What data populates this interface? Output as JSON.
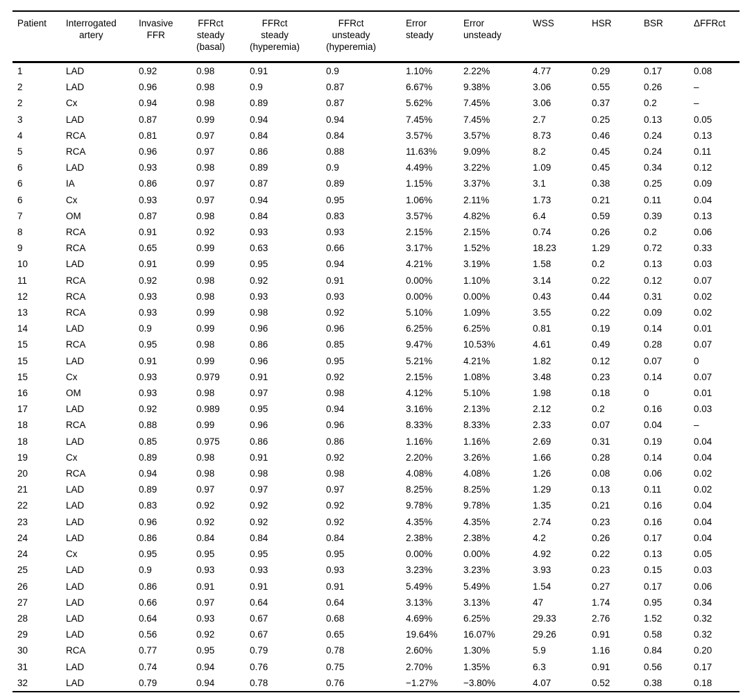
{
  "table": {
    "columns": [
      {
        "key": "patient",
        "label": "Patient"
      },
      {
        "key": "artery",
        "label": "Interrogated\nartery"
      },
      {
        "key": "invasive-ffr",
        "label": "Invasive\nFFR"
      },
      {
        "key": "ffrct-steady-basal",
        "label": "FFRct\nsteady\n(basal)"
      },
      {
        "key": "ffrct-steady-hyperemia",
        "label": "FFRct\nsteady\n(hyperemia)"
      },
      {
        "key": "ffrct-unsteady-hyperemia",
        "label": "FFRct\nunsteady\n(hyperemia)"
      },
      {
        "key": "error-steady",
        "label": "Error\nsteady"
      },
      {
        "key": "error-unsteady",
        "label": "Error\nunsteady"
      },
      {
        "key": "wss",
        "label": "WSS"
      },
      {
        "key": "hsr",
        "label": "HSR"
      },
      {
        "key": "bsr",
        "label": "BSR"
      },
      {
        "key": "delta-ffrct",
        "label": "ΔFFRct"
      }
    ],
    "rows": [
      [
        "1",
        "LAD",
        "0.92",
        "0.98",
        "0.91",
        "0.9",
        "1.10%",
        "2.22%",
        "4.77",
        "0.29",
        "0.17",
        "0.08"
      ],
      [
        "2",
        "LAD",
        "0.96",
        "0.98",
        "0.9",
        "0.87",
        "6.67%",
        "9.38%",
        "3.06",
        "0.55",
        "0.26",
        "–"
      ],
      [
        "2",
        "Cx",
        "0.94",
        "0.98",
        "0.89",
        "0.87",
        "5.62%",
        "7.45%",
        "3.06",
        "0.37",
        "0.2",
        "–"
      ],
      [
        "3",
        "LAD",
        "0.87",
        "0.99",
        "0.94",
        "0.94",
        "7.45%",
        "7.45%",
        "2.7",
        "0.25",
        "0.13",
        "0.05"
      ],
      [
        "4",
        "RCA",
        "0.81",
        "0.97",
        "0.84",
        "0.84",
        "3.57%",
        "3.57%",
        "8.73",
        "0.46",
        "0.24",
        "0.13"
      ],
      [
        "5",
        "RCA",
        "0.96",
        "0.97",
        "0.86",
        "0.88",
        "11.63%",
        "9.09%",
        "8.2",
        "0.45",
        "0.24",
        "0.11"
      ],
      [
        "6",
        "LAD",
        "0.93",
        "0.98",
        "0.89",
        "0.9",
        "4.49%",
        "3.22%",
        "1.09",
        "0.45",
        "0.34",
        "0.12"
      ],
      [
        "6",
        "IA",
        "0.86",
        "0.97",
        "0.87",
        "0.89",
        "1.15%",
        "3.37%",
        "3.1",
        "0.38",
        "0.25",
        "0.09"
      ],
      [
        "6",
        "Cx",
        "0.93",
        "0.97",
        "0.94",
        "0.95",
        "1.06%",
        "2.11%",
        "1.73",
        "0.21",
        "0.11",
        "0.04"
      ],
      [
        "7",
        "OM",
        "0.87",
        "0.98",
        "0.84",
        "0.83",
        "3.57%",
        "4.82%",
        "6.4",
        "0.59",
        "0.39",
        "0.13"
      ],
      [
        "8",
        "RCA",
        "0.91",
        "0.92",
        "0.93",
        "0.93",
        "2.15%",
        "2.15%",
        "0.74",
        "0.26",
        "0.2",
        "0.06"
      ],
      [
        "9",
        "RCA",
        "0.65",
        "0.99",
        "0.63",
        "0.66",
        "3.17%",
        "1.52%",
        "18.23",
        "1.29",
        "0.72",
        "0.33"
      ],
      [
        "10",
        "LAD",
        "0.91",
        "0.99",
        "0.95",
        "0.94",
        "4.21%",
        "3.19%",
        "1.58",
        "0.2",
        "0.13",
        "0.03"
      ],
      [
        "11",
        "RCA",
        "0.92",
        "0.98",
        "0.92",
        "0.91",
        "0.00%",
        "1.10%",
        "3.14",
        "0.22",
        "0.12",
        "0.07"
      ],
      [
        "12",
        "RCA",
        "0.93",
        "0.98",
        "0.93",
        "0.93",
        "0.00%",
        "0.00%",
        "0.43",
        "0.44",
        "0.31",
        "0.02"
      ],
      [
        "13",
        "RCA",
        "0.93",
        "0.99",
        "0.98",
        "0.92",
        "5.10%",
        "1.09%",
        "3.55",
        "0.22",
        "0.09",
        "0.02"
      ],
      [
        "14",
        "LAD",
        "0.9",
        "0.99",
        "0.96",
        "0.96",
        "6.25%",
        "6.25%",
        "0.81",
        "0.19",
        "0.14",
        "0.01"
      ],
      [
        "15",
        "RCA",
        "0.95",
        "0.98",
        "0.86",
        "0.85",
        "9.47%",
        "10.53%",
        "4.61",
        "0.49",
        "0.28",
        "0.07"
      ],
      [
        "15",
        "LAD",
        "0.91",
        "0.99",
        "0.96",
        "0.95",
        "5.21%",
        "4.21%",
        "1.82",
        "0.12",
        "0.07",
        "0"
      ],
      [
        "15",
        "Cx",
        "0.93",
        "0.979",
        "0.91",
        "0.92",
        "2.15%",
        "1.08%",
        "3.48",
        "0.23",
        "0.14",
        "0.07"
      ],
      [
        "16",
        "OM",
        "0.93",
        "0.98",
        "0.97",
        "0.98",
        "4.12%",
        "5.10%",
        "1.98",
        "0.18",
        "0",
        "0.01"
      ],
      [
        "17",
        "LAD",
        "0.92",
        "0.989",
        "0.95",
        "0.94",
        "3.16%",
        "2.13%",
        "2.12",
        "0.2",
        "0.16",
        "0.03"
      ],
      [
        "18",
        "RCA",
        "0.88",
        "0.99",
        "0.96",
        "0.96",
        "8.33%",
        "8.33%",
        "2.33",
        "0.07",
        "0.04",
        "–"
      ],
      [
        "18",
        "LAD",
        "0.85",
        "0.975",
        "0.86",
        "0.86",
        "1.16%",
        "1.16%",
        "2.69",
        "0.31",
        "0.19",
        "0.04"
      ],
      [
        "19",
        "Cx",
        "0.89",
        "0.98",
        "0.91",
        "0.92",
        "2.20%",
        "3.26%",
        "1.66",
        "0.28",
        "0.14",
        "0.04"
      ],
      [
        "20",
        "RCA",
        "0.94",
        "0.98",
        "0.98",
        "0.98",
        "4.08%",
        "4.08%",
        "1.26",
        "0.08",
        "0.06",
        "0.02"
      ],
      [
        "21",
        "LAD",
        "0.89",
        "0.97",
        "0.97",
        "0.97",
        "8.25%",
        "8.25%",
        "1.29",
        "0.13",
        "0.11",
        "0.02"
      ],
      [
        "22",
        "LAD",
        "0.83",
        "0.92",
        "0.92",
        "0.92",
        "9.78%",
        "9.78%",
        "1.35",
        "0.21",
        "0.16",
        "0.04"
      ],
      [
        "23",
        "LAD",
        "0.96",
        "0.92",
        "0.92",
        "0.92",
        "4.35%",
        "4.35%",
        "2.74",
        "0.23",
        "0.16",
        "0.04"
      ],
      [
        "24",
        "LAD",
        "0.86",
        "0.84",
        "0.84",
        "0.84",
        "2.38%",
        "2.38%",
        "4.2",
        "0.26",
        "0.17",
        "0.04"
      ],
      [
        "24",
        "Cx",
        "0.95",
        "0.95",
        "0.95",
        "0.95",
        "0.00%",
        "0.00%",
        "4.92",
        "0.22",
        "0.13",
        "0.05"
      ],
      [
        "25",
        "LAD",
        "0.9",
        "0.93",
        "0.93",
        "0.93",
        "3.23%",
        "3.23%",
        "3.93",
        "0.23",
        "0.15",
        "0.03"
      ],
      [
        "26",
        "LAD",
        "0.86",
        "0.91",
        "0.91",
        "0.91",
        "5.49%",
        "5.49%",
        "1.54",
        "0.27",
        "0.17",
        "0.06"
      ],
      [
        "27",
        "LAD",
        "0.66",
        "0.97",
        "0.64",
        "0.64",
        "3.13%",
        "3.13%",
        "47",
        "1.74",
        "0.95",
        "0.34"
      ],
      [
        "28",
        "LAD",
        "0.64",
        "0.93",
        "0.67",
        "0.68",
        "4.69%",
        "6.25%",
        "29.33",
        "2.76",
        "1.52",
        "0.32"
      ],
      [
        "29",
        "LAD",
        "0.56",
        "0.92",
        "0.67",
        "0.65",
        "19.64%",
        "16.07%",
        "29.26",
        "0.91",
        "0.58",
        "0.32"
      ],
      [
        "30",
        "RCA",
        "0.77",
        "0.95",
        "0.79",
        "0.78",
        "2.60%",
        "1.30%",
        "5.9",
        "1.16",
        "0.84",
        "0.20"
      ],
      [
        "31",
        "LAD",
        "0.74",
        "0.94",
        "0.76",
        "0.75",
        "2.70%",
        "1.35%",
        "6.3",
        "0.91",
        "0.56",
        "0.17"
      ],
      [
        "32",
        "LAD",
        "0.79",
        "0.94",
        "0.78",
        "0.76",
        "−1.27%",
        "−3.80%",
        "4.07",
        "0.52",
        "0.38",
        "0.18"
      ]
    ]
  }
}
